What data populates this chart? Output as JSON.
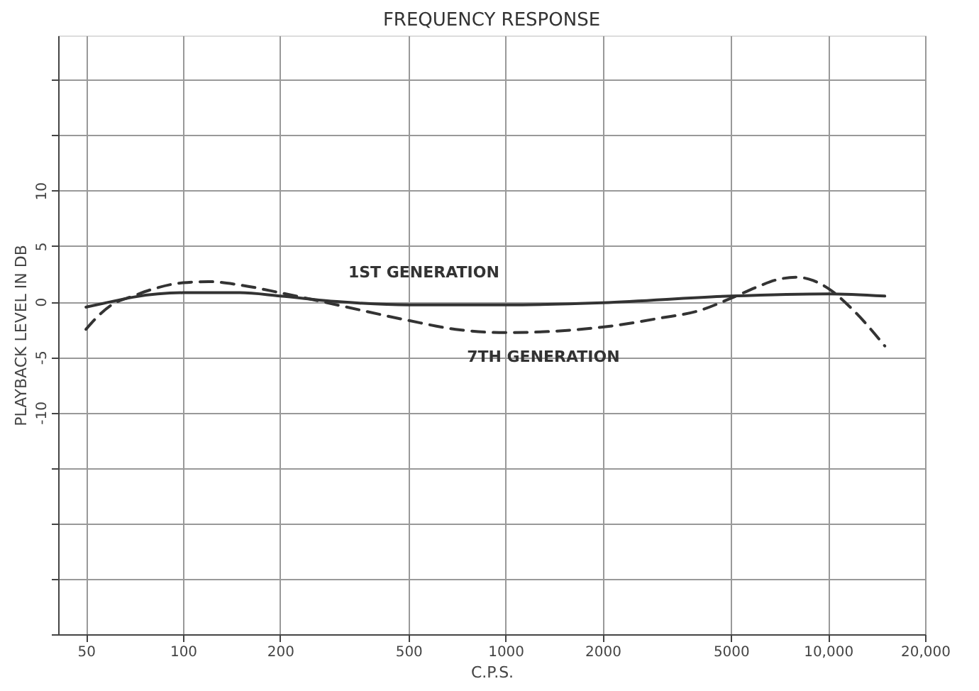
{
  "chart_data": {
    "type": "line",
    "title": "FREQUENCY RESPONSE",
    "xlabel": "C.P.S.",
    "ylabel": "PLAYBACK LEVEL IN DB",
    "log": "x",
    "grid": true,
    "marker": "none",
    "xlim": [
      41,
      20000
    ],
    "xticks": [
      50,
      100,
      200,
      500,
      1000,
      2000,
      5000,
      {
        "value": 10000,
        "label": "10,000"
      },
      {
        "value": 20000,
        "label": "20,000"
      }
    ],
    "ylim": [
      -30,
      24
    ],
    "yticks": [
      {
        "value": 20,
        "label": null
      },
      {
        "value": 15,
        "label": null
      },
      10,
      5,
      0,
      -5,
      -10,
      {
        "value": -15,
        "label": null
      },
      {
        "value": -20,
        "label": null
      },
      {
        "value": -25,
        "label": null
      },
      {
        "value": -30,
        "label": null
      }
    ],
    "series": [
      {
        "color": "#333333",
        "line_style": "solid",
        "x": [
          50,
          60,
          70,
          100,
          150,
          200,
          300,
          500,
          1000,
          2000,
          5000,
          10000,
          15000
        ],
        "values": [
          -0.5,
          0,
          0.4,
          0.8,
          0.8,
          0.5,
          0,
          -0.3,
          -0.3,
          -0.1,
          0.5,
          0.7,
          0.5
        ]
      },
      {
        "color": "#333333",
        "line_style": "dashed",
        "x": [
          50,
          55,
          60,
          70,
          80,
          100,
          120,
          150,
          200,
          300,
          500,
          700,
          1000,
          2000,
          3000,
          4000,
          5000,
          6000,
          7000,
          8000,
          9000,
          10000,
          12000,
          15000
        ],
        "values": [
          -2.5,
          -1.2,
          -0.3,
          0.5,
          1.1,
          1.7,
          1.8,
          1.5,
          0.8,
          -0.3,
          -1.7,
          -2.5,
          -2.8,
          -2.3,
          -1.5,
          -0.8,
          0.3,
          1.3,
          2.0,
          2.2,
          1.9,
          1.2,
          -0.8,
          -4
        ]
      }
    ],
    "annotations": [
      {
        "text": "1ST GENERATION",
        "x": 300,
        "y": 0
      },
      {
        "text": "7TH GENERATION",
        "x": 700,
        "y": -2.5
      }
    ]
  }
}
